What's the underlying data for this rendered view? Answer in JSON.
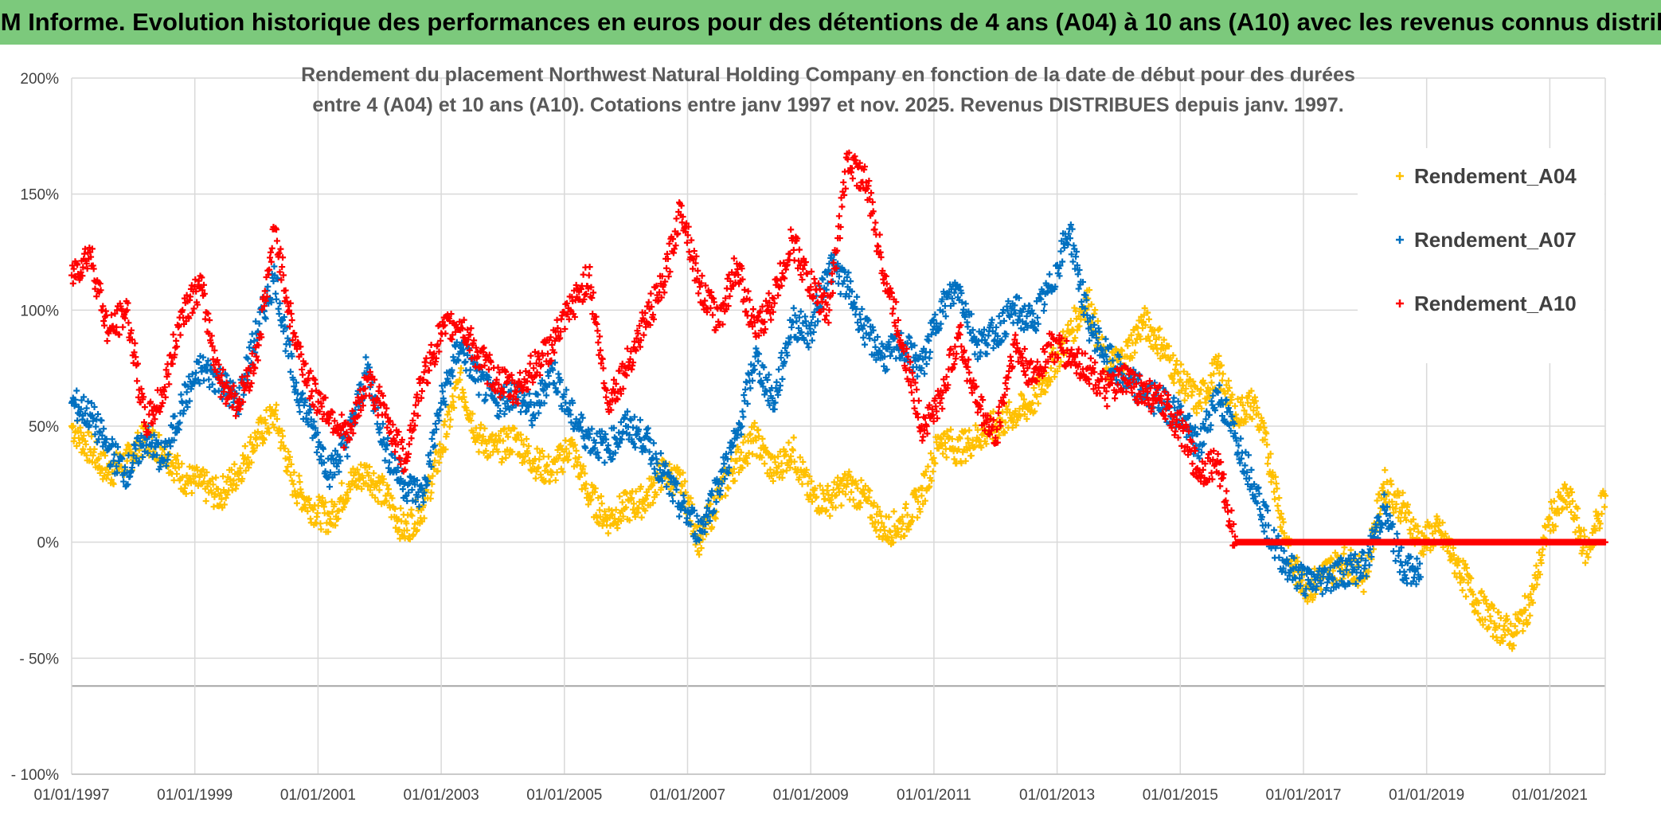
{
  "banner": {
    "text": "ADAM Informe. Evolution historique des performances en euros pour des détentions de 4 ans (A04) à 10 ans (A10) avec les revenus connus distribués"
  },
  "chart_data": {
    "type": "scatter",
    "title_lines": [
      "Rendement du placement Northwest Natural Holding Company en fonction de la date de début pour des durées",
      "entre 4 (A04) et 10 ans (A10). Cotations entre janv 1997 et nov. 2025. Revenus DISTRIBUES depuis janv. 1997."
    ],
    "xlabel": "",
    "ylabel": "",
    "x_tick_labels": [
      "01/01/1997",
      "01/01/1999",
      "01/01/2001",
      "01/01/2003",
      "01/01/2005",
      "01/01/2007",
      "01/01/2009",
      "01/01/2011",
      "01/01/2013",
      "01/01/2015",
      "01/01/2017",
      "01/01/2019",
      "01/01/2021"
    ],
    "y_tick_labels": [
      "200%",
      "150%",
      "100%",
      "50%",
      "0%",
      "- 50%",
      "- 100%"
    ],
    "y_tick_values": [
      200,
      150,
      100,
      50,
      0,
      -50,
      -100
    ],
    "xlim": [
      1997.0,
      2021.9
    ],
    "ylim": [
      -100,
      200
    ],
    "grid": true,
    "legend_position": "right",
    "series": [
      {
        "name": "Rendement_A04",
        "color": "#ffc000",
        "x": [
          1997.0,
          1997.3,
          1997.6,
          1997.9,
          1998.2,
          1998.5,
          1998.8,
          1999.1,
          1999.4,
          1999.7,
          2000.0,
          2000.3,
          2000.6,
          2000.9,
          2001.2,
          2001.5,
          2001.8,
          2002.1,
          2002.4,
          2002.7,
          2003.0,
          2003.3,
          2003.6,
          2003.9,
          2004.2,
          2004.5,
          2004.8,
          2005.1,
          2005.4,
          2005.7,
          2006.0,
          2006.3,
          2006.6,
          2006.9,
          2007.2,
          2007.5,
          2007.8,
          2008.1,
          2008.4,
          2008.7,
          2009.0,
          2009.3,
          2009.6,
          2009.9,
          2010.2,
          2010.5,
          2010.8,
          2011.1,
          2011.4,
          2011.7,
          2012.0,
          2012.3,
          2012.6,
          2012.9,
          2013.2,
          2013.5,
          2013.8,
          2014.1,
          2014.4,
          2014.7,
          2015.0,
          2015.3,
          2015.6,
          2015.9,
          2016.2,
          2016.5,
          2016.8,
          2017.1,
          2017.4,
          2017.7,
          2018.0,
          2018.3,
          2018.6,
          2018.9,
          2019.2,
          2019.5,
          2019.8,
          2020.1,
          2020.4,
          2020.7,
          2021.0,
          2021.3,
          2021.6,
          2021.9
        ],
        "values": [
          50,
          40,
          30,
          35,
          45,
          40,
          28,
          25,
          20,
          30,
          45,
          55,
          25,
          15,
          10,
          25,
          30,
          20,
          5,
          15,
          40,
          70,
          45,
          40,
          45,
          35,
          30,
          42,
          20,
          10,
          15,
          18,
          30,
          25,
          0,
          20,
          35,
          45,
          30,
          40,
          20,
          18,
          25,
          18,
          5,
          8,
          20,
          45,
          40,
          45,
          50,
          55,
          60,
          75,
          90,
          105,
          75,
          80,
          95,
          85,
          70,
          60,
          75,
          55,
          60,
          30,
          -10,
          -20,
          -12,
          -8,
          -15,
          25,
          15,
          0,
          5,
          -10,
          -25,
          -35,
          -40,
          -25,
          10,
          20,
          -5,
          20
        ]
      },
      {
        "name": "Rendement_A07",
        "color": "#0070c0",
        "x": [
          1997.0,
          1997.3,
          1997.6,
          1997.9,
          1998.2,
          1998.5,
          1998.8,
          1999.1,
          1999.4,
          1999.7,
          2000.0,
          2000.3,
          2000.6,
          2000.9,
          2001.2,
          2001.5,
          2001.8,
          2002.1,
          2002.4,
          2002.7,
          2003.0,
          2003.3,
          2003.6,
          2003.9,
          2004.2,
          2004.5,
          2004.8,
          2005.1,
          2005.4,
          2005.7,
          2006.0,
          2006.3,
          2006.6,
          2006.9,
          2007.2,
          2007.5,
          2007.8,
          2008.1,
          2008.4,
          2008.7,
          2009.0,
          2009.3,
          2009.6,
          2009.9,
          2010.2,
          2010.5,
          2010.8,
          2011.1,
          2011.4,
          2011.7,
          2012.0,
          2012.3,
          2012.6,
          2012.9,
          2013.2,
          2013.5,
          2013.8,
          2014.1,
          2014.4,
          2014.7,
          2015.0,
          2015.3,
          2015.6,
          2015.9,
          2016.2,
          2016.5,
          2016.8,
          2017.1,
          2017.4,
          2017.7,
          2018.0,
          2018.3,
          2018.6,
          2018.9
        ],
        "values": [
          60,
          55,
          40,
          30,
          45,
          35,
          60,
          75,
          70,
          60,
          90,
          115,
          70,
          50,
          30,
          45,
          75,
          40,
          25,
          20,
          60,
          85,
          70,
          60,
          65,
          55,
          75,
          55,
          45,
          40,
          50,
          45,
          30,
          15,
          5,
          25,
          45,
          80,
          60,
          95,
          90,
          120,
          110,
          90,
          80,
          85,
          75,
          100,
          110,
          85,
          90,
          100,
          95,
          110,
          135,
          95,
          80,
          70,
          65,
          60,
          55,
          40,
          65,
          45,
          25,
          0,
          -12,
          -18,
          -15,
          -12,
          -10,
          15,
          -10,
          -15
        ]
      },
      {
        "name": "Rendement_A10",
        "color": "#ff0000",
        "x": [
          1997.0,
          1997.3,
          1997.6,
          1997.9,
          1998.2,
          1998.5,
          1998.8,
          1999.1,
          1999.4,
          1999.7,
          2000.0,
          2000.3,
          2000.6,
          2000.9,
          2001.2,
          2001.5,
          2001.8,
          2002.1,
          2002.4,
          2002.7,
          2003.0,
          2003.3,
          2003.6,
          2003.9,
          2004.2,
          2004.5,
          2004.8,
          2005.1,
          2005.4,
          2005.7,
          2006.0,
          2006.3,
          2006.6,
          2006.9,
          2007.2,
          2007.5,
          2007.8,
          2008.1,
          2008.4,
          2008.7,
          2009.0,
          2009.3,
          2009.6,
          2009.9,
          2010.2,
          2010.5,
          2010.8,
          2011.1,
          2011.4,
          2011.7,
          2012.0,
          2012.3,
          2012.6,
          2012.9,
          2013.2,
          2013.5,
          2013.8,
          2014.1,
          2014.4,
          2014.7,
          2015.0,
          2015.3,
          2015.6,
          2015.9,
          2016.2,
          2016.5,
          2016.8,
          2017.1,
          2017.4,
          2017.7,
          2018.0,
          2018.3,
          2018.6,
          2018.9,
          2019.2,
          2019.5,
          2019.8,
          2020.1,
          2020.4,
          2020.7,
          2021.0,
          2021.3,
          2021.6,
          2021.9
        ],
        "values": [
          115,
          125,
          90,
          100,
          50,
          65,
          100,
          110,
          70,
          60,
          80,
          135,
          90,
          65,
          55,
          45,
          70,
          55,
          35,
          70,
          90,
          95,
          80,
          70,
          65,
          75,
          85,
          100,
          115,
          60,
          75,
          95,
          110,
          145,
          110,
          95,
          120,
          90,
          105,
          130,
          110,
          100,
          165,
          155,
          115,
          85,
          50,
          60,
          90,
          60,
          45,
          85,
          70,
          85,
          80,
          75,
          65,
          70,
          65,
          60,
          50,
          30,
          35,
          0,
          0,
          0,
          0,
          0,
          0,
          0,
          0,
          0,
          0,
          0,
          0,
          0,
          0,
          0,
          0,
          0,
          0,
          0,
          0,
          0
        ]
      }
    ]
  }
}
